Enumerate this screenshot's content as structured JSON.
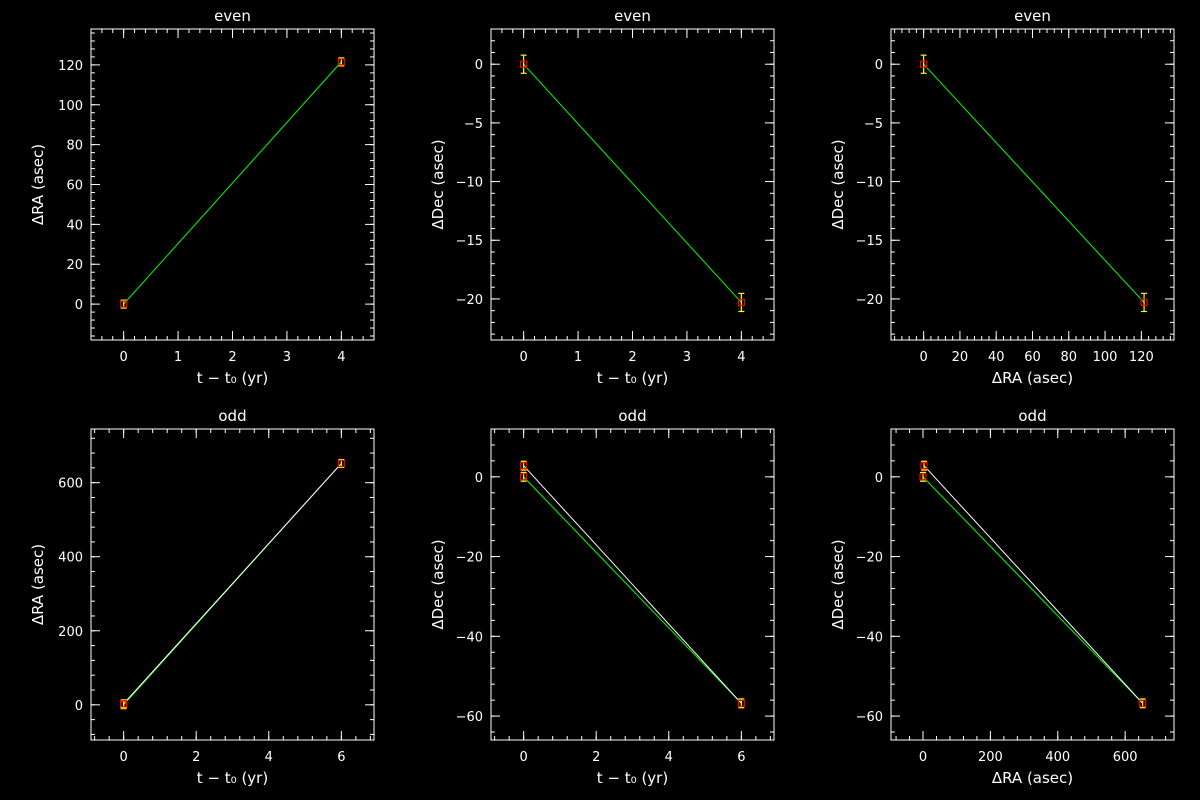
{
  "colors": {
    "background": "#000000",
    "axes": "#ffffff",
    "fit_line": "#00ff00",
    "marker": "#ff0000",
    "error_bar": "#ffff00",
    "data_line": "#ffffff"
  },
  "chart_data": [
    {
      "type": "scatter",
      "title": "even",
      "xlabel": "t − t₀ (yr)",
      "ylabel": "ΔRA (asec)",
      "xlim": [
        -0.6,
        4.6
      ],
      "ylim": [
        -18,
        138
      ],
      "xticks": [
        0,
        1,
        2,
        3,
        4
      ],
      "yticks": [
        0,
        20,
        40,
        60,
        80,
        100,
        120
      ],
      "points": [
        {
          "x": 0,
          "y": 0,
          "yerr": 1
        },
        {
          "x": 4,
          "y": 121.5,
          "yerr": 1
        }
      ],
      "fit": [
        [
          0,
          0
        ],
        [
          4,
          121.5
        ]
      ]
    },
    {
      "type": "scatter",
      "title": "even",
      "xlabel": "t − t₀ (yr)",
      "ylabel": "ΔDec (asec)",
      "xlim": [
        -0.6,
        4.6
      ],
      "ylim": [
        -23.5,
        3
      ],
      "xticks": [
        0,
        1,
        2,
        3,
        4
      ],
      "yticks": [
        0,
        -5,
        -10,
        -15,
        -20
      ],
      "points": [
        {
          "x": 0,
          "y": 0,
          "yerr": 0.6
        },
        {
          "x": 4,
          "y": -20.3,
          "yerr": 0.6
        }
      ],
      "fit": [
        [
          0,
          0
        ],
        [
          4,
          -20.3
        ]
      ]
    },
    {
      "type": "scatter",
      "title": "even",
      "xlabel": "ΔRA (asec)",
      "ylabel": "ΔDec (asec)",
      "xlim": [
        -18,
        138
      ],
      "ylim": [
        -23.5,
        3
      ],
      "xticks": [
        0,
        20,
        40,
        60,
        80,
        100,
        120
      ],
      "yticks": [
        0,
        -5,
        -10,
        -15,
        -20
      ],
      "points": [
        {
          "x": 0,
          "y": 0,
          "yerr": 0.6
        },
        {
          "x": 121.5,
          "y": -20.3,
          "yerr": 0.6
        }
      ],
      "fit": [
        [
          0,
          0
        ],
        [
          121.5,
          -20.3
        ]
      ]
    },
    {
      "type": "scatter",
      "title": "odd",
      "xlabel": "t − t₀ (yr)",
      "ylabel": "ΔRA (asec)",
      "xlim": [
        -0.9,
        6.9
      ],
      "ylim": [
        -95,
        745
      ],
      "xticks": [
        0,
        2,
        4,
        6
      ],
      "yticks": [
        0,
        200,
        400,
        600
      ],
      "points": [
        {
          "x": 0,
          "y": 0,
          "yerr": 5
        },
        {
          "x": 0,
          "y": 3,
          "yerr": 5
        },
        {
          "x": 6,
          "y": 652,
          "yerr": 5
        }
      ],
      "fit": [
        [
          0,
          0
        ],
        [
          6,
          652
        ]
      ],
      "data_line": [
        [
          0,
          3
        ],
        [
          6,
          652
        ]
      ]
    },
    {
      "type": "scatter",
      "title": "odd",
      "xlabel": "t − t₀ (yr)",
      "ylabel": "ΔDec (asec)",
      "xlim": [
        -0.9,
        6.9
      ],
      "ylim": [
        -66,
        12
      ],
      "xticks": [
        0,
        2,
        4,
        6
      ],
      "yticks": [
        0,
        -20,
        -40,
        -60
      ],
      "points": [
        {
          "x": 0,
          "y": 0,
          "yerr": 0.6
        },
        {
          "x": 0,
          "y": 2.8,
          "yerr": 0.6
        },
        {
          "x": 6,
          "y": -56.8,
          "yerr": 0.6
        }
      ],
      "fit": [
        [
          0,
          0
        ],
        [
          6,
          -56.8
        ]
      ],
      "data_line": [
        [
          0,
          2.8
        ],
        [
          6,
          -56.8
        ]
      ]
    },
    {
      "type": "scatter",
      "title": "odd",
      "xlabel": "ΔRA (asec)",
      "ylabel": "ΔDec (asec)",
      "xlim": [
        -95,
        745
      ],
      "ylim": [
        -66,
        12
      ],
      "xticks": [
        0,
        200,
        400,
        600
      ],
      "yticks": [
        0,
        -20,
        -40,
        -60
      ],
      "points": [
        {
          "x": 0,
          "y": 0,
          "yerr": 0.6
        },
        {
          "x": 3,
          "y": 2.8,
          "yerr": 0.6
        },
        {
          "x": 652,
          "y": -56.8,
          "yerr": 0.6
        }
      ],
      "fit": [
        [
          0,
          0
        ],
        [
          652,
          -56.8
        ]
      ],
      "data_line": [
        [
          3,
          2.8
        ],
        [
          652,
          -56.8
        ]
      ]
    }
  ]
}
